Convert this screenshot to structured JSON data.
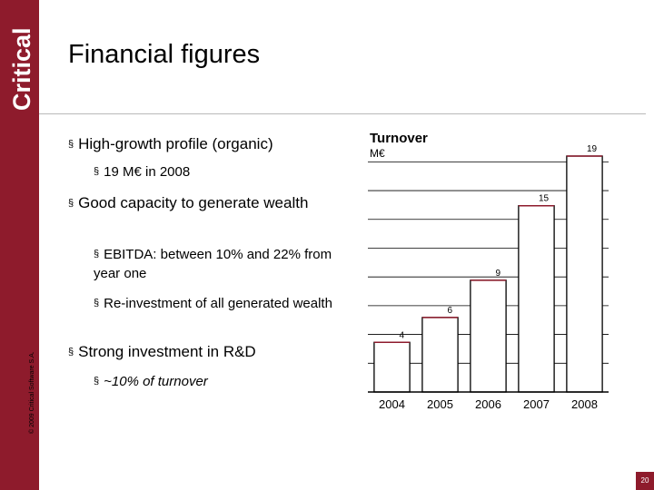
{
  "brand": {
    "logo_text": "Critical",
    "color": "#8e1b2c",
    "copyright": "© 2009 Critical Software S.A."
  },
  "slide": {
    "title": "Financial figures",
    "page_number": "20"
  },
  "bullets": {
    "b1": "High-growth profile (organic)",
    "b1a": "19 M€ in 2008",
    "b2": "Good capacity to generate wealth",
    "b2a": "EBITDA: between 10% and 22% from year one",
    "b2b": "Re-investment of all generated wealth",
    "b3": "Strong investment in R&D",
    "b3a": "~10% of turnover",
    "marker": "§"
  },
  "chart_data": {
    "type": "bar",
    "title": "Turnover",
    "unit": "M€",
    "categories": [
      "2004",
      "2005",
      "2006",
      "2007",
      "2008"
    ],
    "values": [
      4,
      6,
      9,
      15,
      19
    ],
    "ylim": [
      0,
      19
    ],
    "grid": true,
    "bar_color": "#ffffff",
    "edge_color": "#000000",
    "accent_color": "#8e1b2c"
  }
}
